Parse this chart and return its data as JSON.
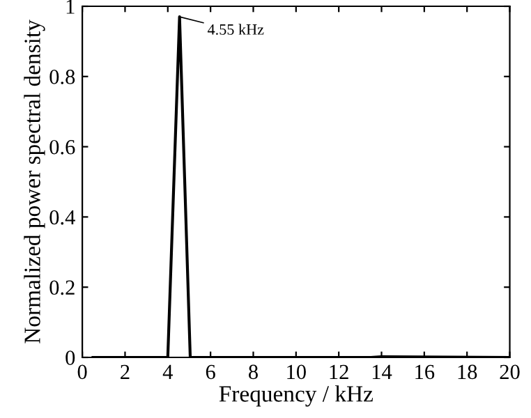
{
  "chart_data": {
    "type": "line",
    "xlabel": "Frequency / kHz",
    "ylabel": "Normalized power spectral density",
    "x": [
      0.5,
      4.0,
      4.55,
      5.05,
      13.5,
      14.0,
      20
    ],
    "series": [
      {
        "color": "#000000",
        "values": [
          0,
          0,
          0.97,
          0,
          0,
          0.002,
          0
        ]
      }
    ],
    "annotations": [
      {
        "text": "4.55 kHz",
        "x": 4.55,
        "y": 0.97
      }
    ],
    "xlim": [
      0,
      20
    ],
    "xticks": [
      0,
      2,
      4,
      6,
      8,
      10,
      12,
      14,
      16,
      18,
      20
    ],
    "ylim": [
      0,
      1
    ],
    "yticks": [
      0,
      0.2,
      0.4,
      0.6,
      0.8,
      1
    ],
    "grid": false,
    "legend": false,
    "marker": "none",
    "line_style": "solid"
  }
}
